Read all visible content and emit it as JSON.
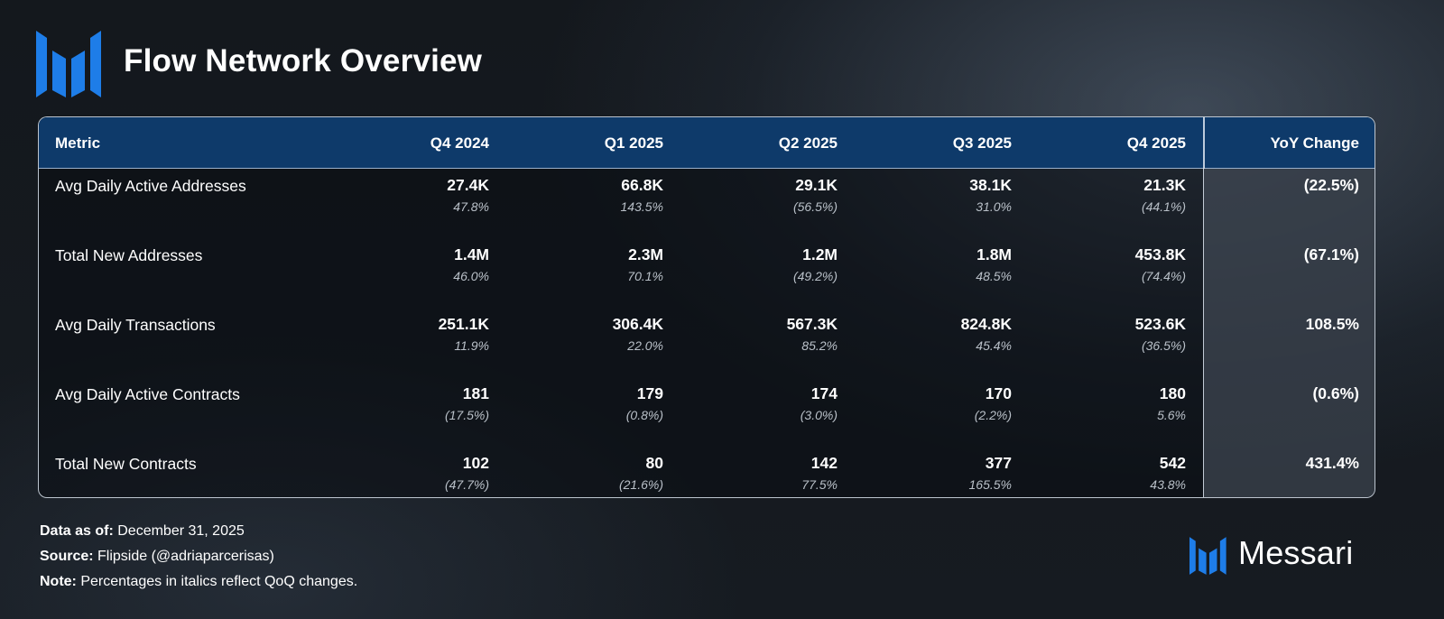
{
  "title": "Flow Network Overview",
  "colors": {
    "header_bg": "#0e3a6a",
    "logo_blue": "#1e7de8",
    "yoy_column_bg": "#3f4852"
  },
  "chart_data": {
    "type": "table",
    "columns": [
      "Metric",
      "Q4 2024",
      "Q1 2025",
      "Q2 2025",
      "Q3 2025",
      "Q4 2025",
      "YoY Change"
    ],
    "rows": [
      {
        "metric": "Avg Daily Active Addresses",
        "values": [
          "27.4K",
          "66.8K",
          "29.1K",
          "38.1K",
          "21.3K"
        ],
        "qoq": [
          "47.8%",
          "143.5%",
          "(56.5%)",
          "31.0%",
          "(44.1%)"
        ],
        "yoy": "(22.5%)"
      },
      {
        "metric": "Total New Addresses",
        "values": [
          "1.4M",
          "2.3M",
          "1.2M",
          "1.8M",
          "453.8K"
        ],
        "qoq": [
          "46.0%",
          "70.1%",
          "(49.2%)",
          "48.5%",
          "(74.4%)"
        ],
        "yoy": "(67.1%)"
      },
      {
        "metric": "Avg Daily Transactions",
        "values": [
          "251.1K",
          "306.4K",
          "567.3K",
          "824.8K",
          "523.6K"
        ],
        "qoq": [
          "11.9%",
          "22.0%",
          "85.2%",
          "45.4%",
          "(36.5%)"
        ],
        "yoy": "108.5%"
      },
      {
        "metric": "Avg Daily Active Contracts",
        "values": [
          "181",
          "179",
          "174",
          "170",
          "180"
        ],
        "qoq": [
          "(17.5%)",
          "(0.8%)",
          "(3.0%)",
          "(2.2%)",
          "5.6%"
        ],
        "yoy": "(0.6%)"
      },
      {
        "metric": "Total New Contracts",
        "values": [
          "102",
          "80",
          "142",
          "377",
          "542"
        ],
        "qoq": [
          "(47.7%)",
          "(21.6%)",
          "77.5%",
          "165.5%",
          "43.8%"
        ],
        "yoy": "431.4%"
      }
    ]
  },
  "footer": {
    "data_as_of_label": "Data as of:",
    "data_as_of_value": " December 31, 2025",
    "source_label": "Source:",
    "source_value": " Flipside (@adriaparcerisas)",
    "note_label": "Note:",
    "note_value": " Percentages in italics reflect QoQ changes."
  },
  "brand": {
    "name": "Messari",
    "icon": "messari-logo-icon"
  }
}
